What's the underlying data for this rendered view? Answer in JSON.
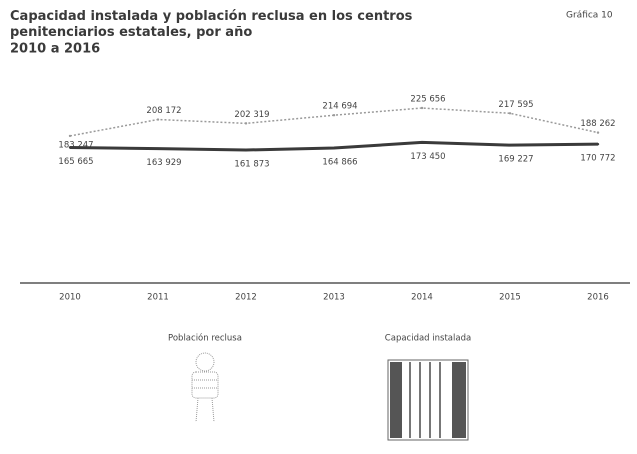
{
  "chart_data": {
    "type": "line",
    "title": "Capacidad instalada y población reclusa en los centros penitenciarios estatales, por año",
    "subtitle": "2010 a 2016",
    "figure_label": "Gráfica 10",
    "categories": [
      "2010",
      "2011",
      "2012",
      "2013",
      "2014",
      "2015",
      "2016"
    ],
    "series": [
      {
        "name": "Población reclusa",
        "color": "#9a9a9a",
        "values": [
          183247,
          208172,
          202319,
          214694,
          225656,
          217595,
          188262
        ],
        "value_labels": [
          "183 247",
          "208 172",
          "202 319",
          "214 694",
          "225 656",
          "217 595",
          "188 262"
        ]
      },
      {
        "name": "Capacidad instalada",
        "color": "#3a3a3a",
        "values": [
          165665,
          163929,
          161873,
          164866,
          173450,
          169227,
          170772
        ],
        "value_labels": [
          "165 665",
          "163 929",
          "161 873",
          "164 866",
          "173 450",
          "169 227",
          "170 772"
        ]
      }
    ]
  }
}
